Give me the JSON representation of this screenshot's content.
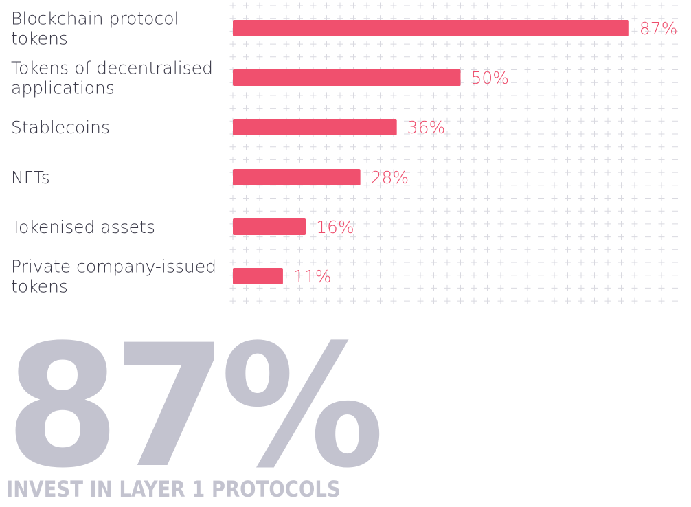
{
  "colors": {
    "bar": "#f0506e",
    "value_text": "#ee4d6c",
    "grid_plus": "#d9d9e0",
    "big_text": "#c3c3cf"
  },
  "chart_data": {
    "type": "bar",
    "orientation": "horizontal",
    "categories": [
      [
        "Blockchain protocol",
        "tokens"
      ],
      [
        "Tokens of decentralised",
        "applications"
      ],
      [
        "Stablecoins"
      ],
      [
        "NFTs"
      ],
      [
        "Tokenised assets"
      ],
      [
        "Private company-issued",
        "tokens"
      ]
    ],
    "values": [
      87,
      50,
      36,
      28,
      16,
      11
    ],
    "value_labels": [
      "87%",
      "50%",
      "36%",
      "28%",
      "16%",
      "11%"
    ],
    "xlim": [
      0,
      100
    ],
    "grid": true
  },
  "callout": {
    "value": "87%",
    "caption": "INVEST IN LAYER 1 PROTOCOLS"
  }
}
